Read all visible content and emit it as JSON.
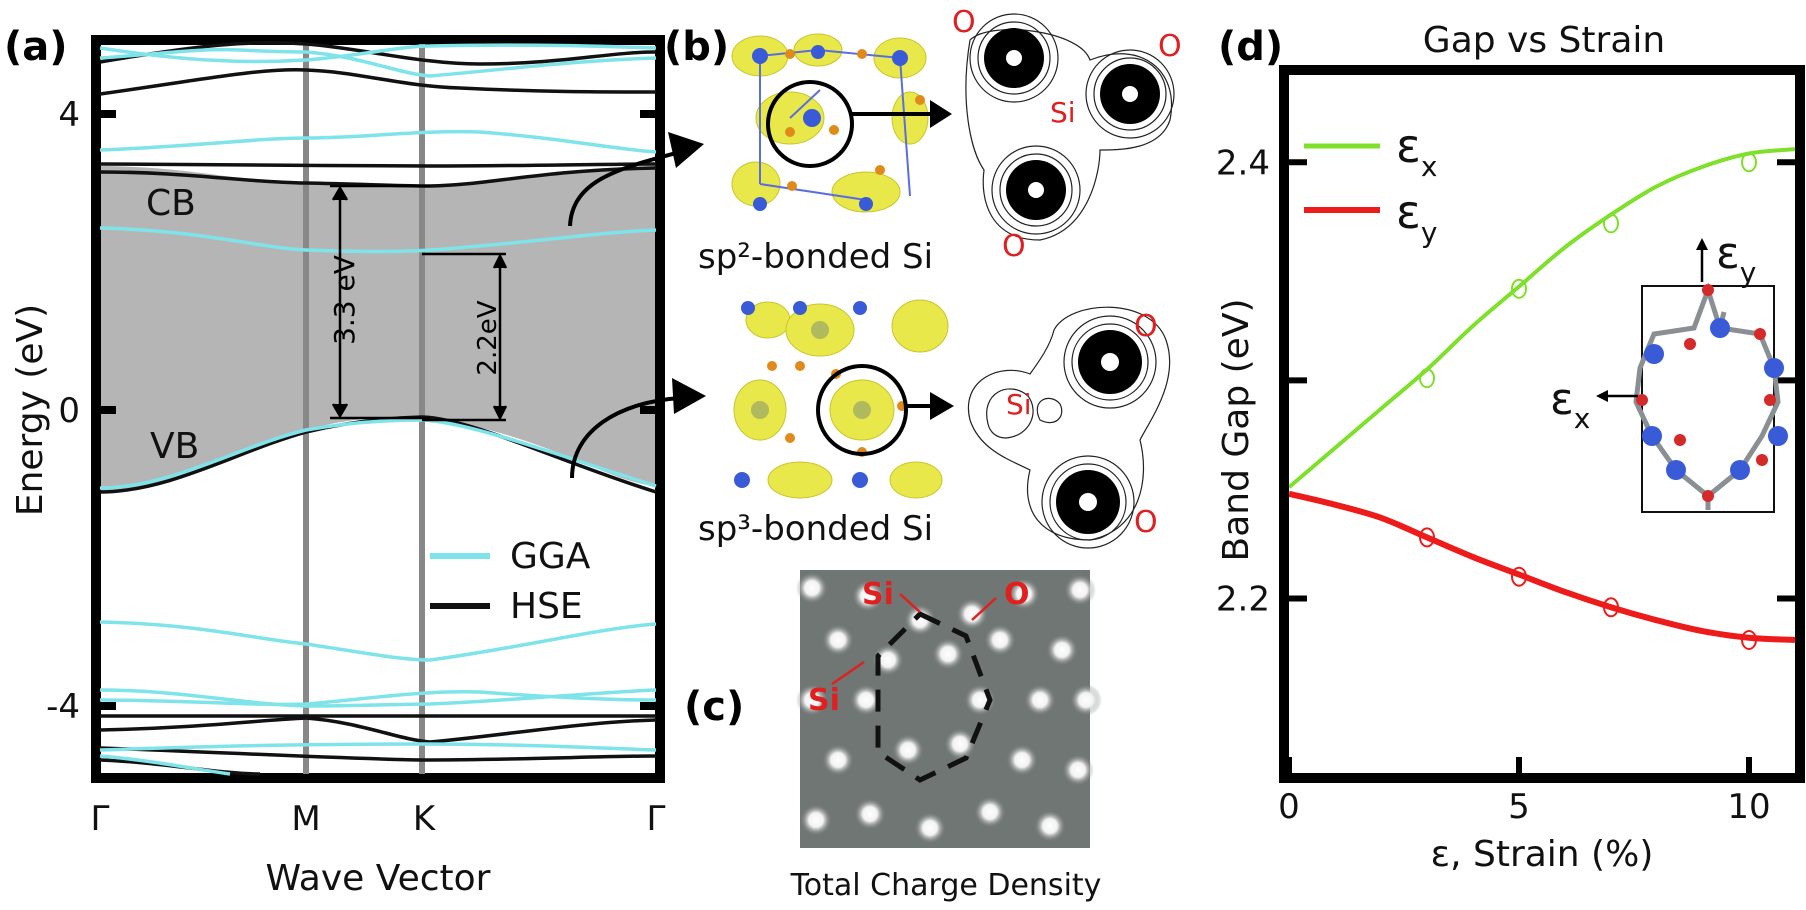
{
  "colors": {
    "gga": "#7fe3ea",
    "hse": "#111111",
    "gap_fill": "#b5b5b5",
    "eps_x": "#7ee02a",
    "eps_y": "#ee1b1b",
    "annot_red": "#e02020",
    "si_blue": "#3a5bd8",
    "o_red": "#d42a2a",
    "charge_yellow": "#e8e84a",
    "density_bg": "#6f7673"
  },
  "panels": {
    "a": "(a)",
    "b": "(b)",
    "c": "(c)",
    "d": "(d)"
  },
  "panel_a": {
    "ylabel": "Energy (eV)",
    "xlabel": "Wave Vector",
    "yticks": [
      "4",
      "0",
      "-4"
    ],
    "kpoints": [
      "Γ",
      "M",
      "K",
      "Γ"
    ],
    "cb_label": "CB",
    "vb_label": "VB",
    "gap_hse": "3.3 eV",
    "gap_gga": "2.2eV",
    "legend": [
      "GGA",
      "HSE"
    ]
  },
  "panel_b": {
    "sp2_caption": "sp²-bonded Si",
    "sp3_caption": "sp³-bonded Si",
    "o_label": "O",
    "si_label": "Si"
  },
  "panel_c": {
    "caption": "Total Charge Density",
    "si_label": "Si",
    "o_label": "O"
  },
  "chart_data": {
    "type": "line",
    "title": "Gap vs Strain",
    "xlabel": "ε, Strain (%)",
    "ylabel": "Band Gap (eV)",
    "xlim": [
      0,
      11
    ],
    "ylim": [
      2.12,
      2.44
    ],
    "xticks": [
      0,
      5,
      10
    ],
    "yticks": [
      2.2,
      2.3,
      2.4
    ],
    "xtick_labels": [
      "0",
      "5",
      "10"
    ],
    "ytick_labels": [
      "2.2",
      "",
      "2.4"
    ],
    "series": [
      {
        "name": "εx",
        "legend": "ε",
        "sub": "x",
        "color": "#7ee02a",
        "curve_x": [
          0,
          1,
          2,
          3,
          4,
          5,
          6,
          7,
          8,
          9,
          10,
          11
        ],
        "curve_y": [
          2.251,
          2.269,
          2.287,
          2.305,
          2.325,
          2.343,
          2.361,
          2.376,
          2.389,
          2.398,
          2.404,
          2.406
        ],
        "markers_x": [
          3,
          5,
          7,
          10
        ],
        "markers_y": [
          2.301,
          2.342,
          2.372,
          2.4
        ]
      },
      {
        "name": "εy",
        "legend": "ε",
        "sub": "y",
        "color": "#ee1b1b",
        "curve_x": [
          0,
          1,
          2,
          3,
          4,
          5,
          6,
          7,
          8,
          9,
          10,
          11
        ],
        "curve_y": [
          2.248,
          2.243,
          2.237,
          2.228,
          2.219,
          2.211,
          2.203,
          2.196,
          2.19,
          2.185,
          2.182,
          2.181
        ],
        "markers_x": [
          3,
          5,
          7,
          10
        ],
        "markers_y": [
          2.228,
          2.21,
          2.196,
          2.181
        ]
      }
    ],
    "inset": {
      "eps_x": "ε",
      "eps_x_sub": "x",
      "eps_y": "ε",
      "eps_y_sub": "y"
    }
  }
}
